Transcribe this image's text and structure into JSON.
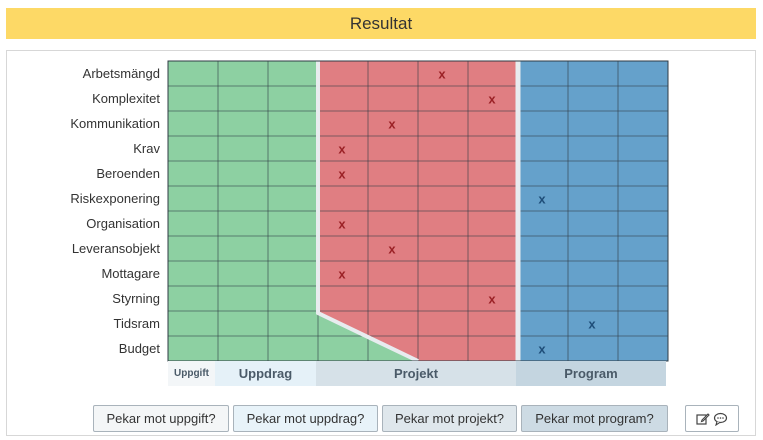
{
  "header": {
    "title": "Resultat"
  },
  "rows": [
    "Arbetsmängd",
    "Komplexitet",
    "Kommunikation",
    "Krav",
    "Beroenden",
    "Riskexponering",
    "Organisation",
    "Leveransobjekt",
    "Mottagare",
    "Styrning",
    "Tidsram",
    "Budget"
  ],
  "marks": [
    {
      "row": 0,
      "col": 5,
      "text": "x"
    },
    {
      "row": 1,
      "col": 6,
      "text": "x"
    },
    {
      "row": 2,
      "col": 4,
      "text": "x"
    },
    {
      "row": 3,
      "col": 3,
      "text": "x"
    },
    {
      "row": 4,
      "col": 3,
      "text": "x"
    },
    {
      "row": 5,
      "col": 7,
      "text": "x"
    },
    {
      "row": 6,
      "col": 3,
      "text": "x"
    },
    {
      "row": 7,
      "col": 4,
      "text": "x"
    },
    {
      "row": 8,
      "col": 3,
      "text": "x"
    },
    {
      "row": 9,
      "col": 6,
      "text": "x"
    },
    {
      "row": 10,
      "col": 8,
      "text": "x"
    },
    {
      "row": 11,
      "col": 7,
      "text": "x"
    }
  ],
  "categories": {
    "uppgift": "Uppgift",
    "uppdrag": "Uppdrag",
    "projekt": "Projekt",
    "program": "Program"
  },
  "buttons": {
    "uppgift": "Pekar mot uppgift?",
    "uppdrag": "Pekar mot uppdrag?",
    "projekt": "Pekar mot projekt?",
    "program": "Pekar mot program?"
  },
  "colors": {
    "header": "#fdd966",
    "green": "#8dd0a2",
    "red": "#e07e82",
    "blue": "#65a1cb",
    "mark_red": "#9b2226",
    "mark_blue": "#1f4e79"
  },
  "icons": [
    "edit-icon",
    "comment-icon"
  ]
}
